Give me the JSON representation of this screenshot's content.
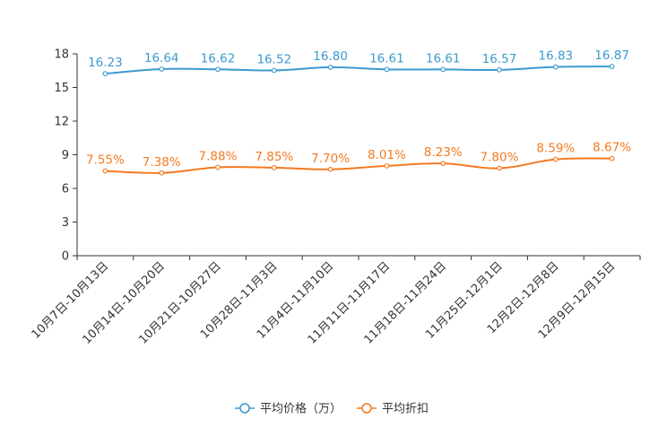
{
  "chart_data": {
    "type": "line",
    "title": "",
    "xlabel": "",
    "ylabel": "",
    "ylim": [
      0,
      18
    ],
    "yticks": [
      0,
      3,
      6,
      9,
      12,
      15,
      18
    ],
    "grid": false,
    "legend_position": "bottom-center",
    "categories": [
      "10月7日-10月13日",
      "10月14日-10月20日",
      "10月21日-10月27日",
      "10月28日-11月3日",
      "11月4日-11月10日",
      "11月11日-11月17日",
      "11月18日-11月24日",
      "11月25日-12月1日",
      "12月2日-12月8日",
      "12月9日-12月15日"
    ],
    "series": [
      {
        "name": "平均价格（万）",
        "color": "#3c9ad0",
        "values": [
          16.23,
          16.64,
          16.62,
          16.52,
          16.8,
          16.61,
          16.61,
          16.57,
          16.83,
          16.87
        ],
        "labels": [
          "16.23",
          "16.64",
          "16.62",
          "16.52",
          "16.80",
          "16.61",
          "16.61",
          "16.57",
          "16.83",
          "16.87"
        ]
      },
      {
        "name": "平均折扣",
        "color": "#f47a20",
        "values": [
          7.55,
          7.38,
          7.88,
          7.85,
          7.7,
          8.01,
          8.23,
          7.8,
          8.59,
          8.67
        ],
        "labels": [
          "7.55%",
          "7.38%",
          "7.88%",
          "7.85%",
          "7.70%",
          "8.01%",
          "8.23%",
          "7.80%",
          "8.59%",
          "8.67%"
        ]
      }
    ]
  }
}
